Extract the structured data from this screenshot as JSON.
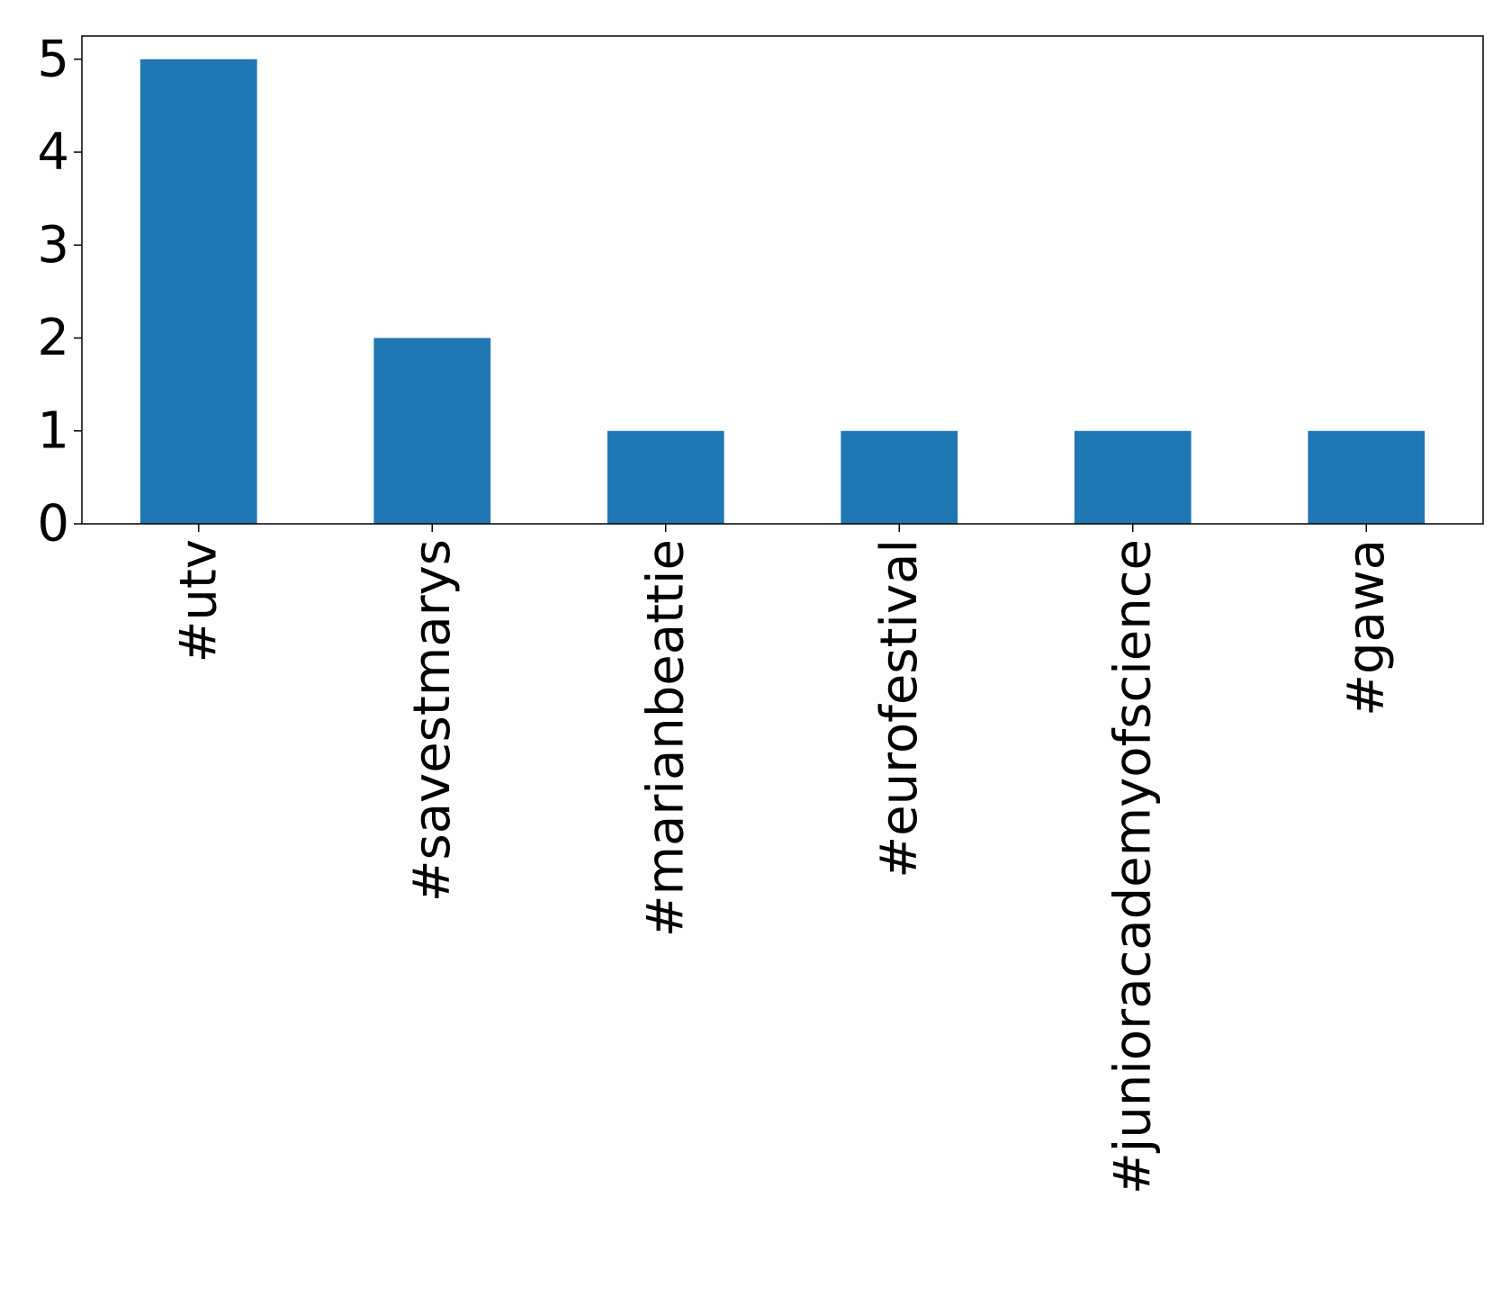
{
  "chart_data": {
    "type": "bar",
    "title": "",
    "xlabel": "",
    "ylabel": "",
    "categories": [
      "#utv",
      "#savestmarys",
      "#marianbeattie",
      "#eurofestival",
      "#junioracademyofscience",
      "#gawa"
    ],
    "values": [
      5,
      2,
      1,
      1,
      1,
      1
    ],
    "ylim": [
      0,
      5.25
    ],
    "yticks": [
      0,
      1,
      2,
      3,
      4,
      5
    ],
    "bar_color": "#1f77b4",
    "grid": false,
    "legend": "none"
  }
}
